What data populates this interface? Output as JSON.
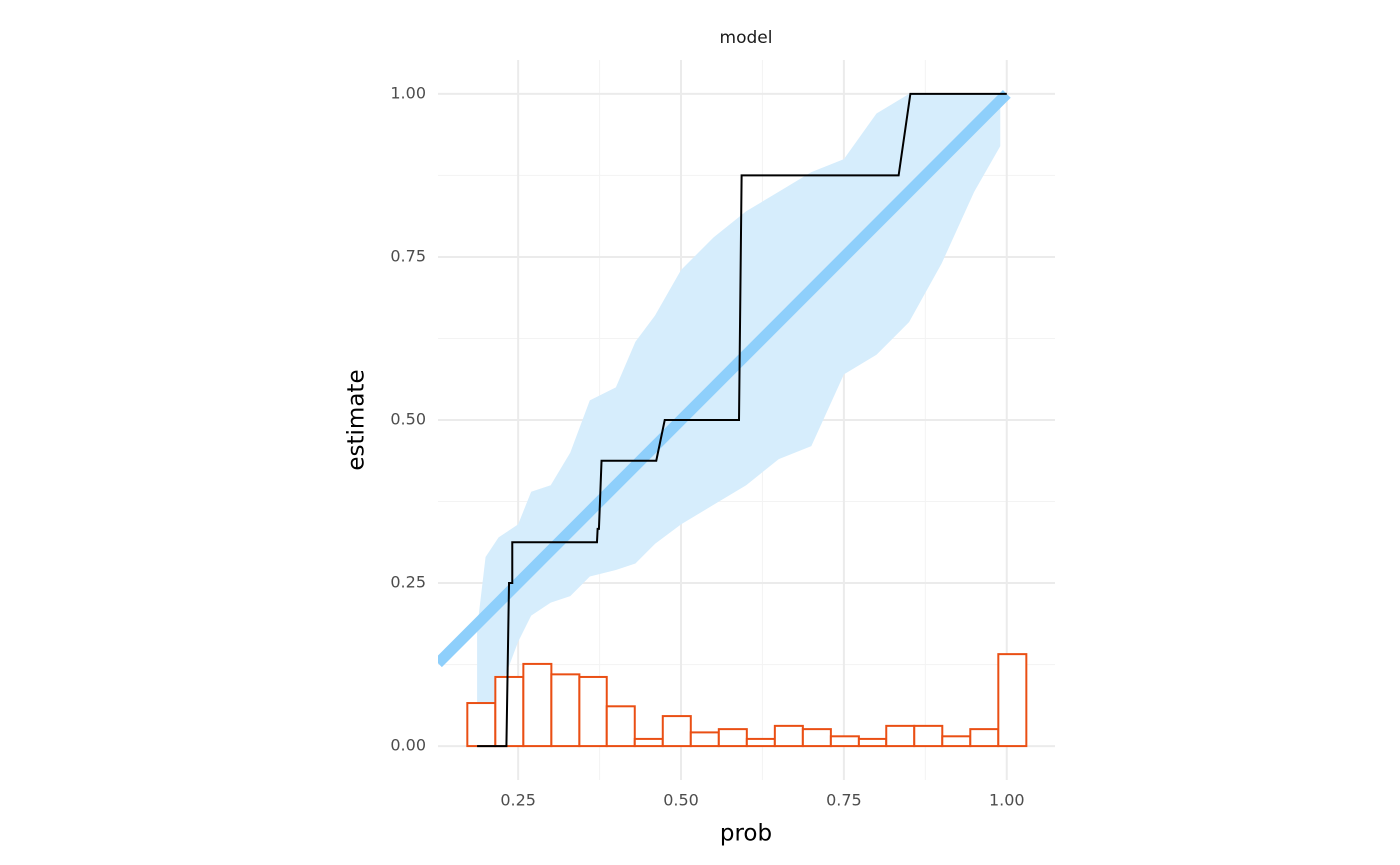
{
  "chart_data": {
    "type": "calibration",
    "facet_title": "model",
    "x_label": "prob",
    "y_label": "estimate",
    "xlim": [
      0.127,
      1.074
    ],
    "ylim": [
      -0.052,
      1.052
    ],
    "xticks": [
      {
        "value": 0.25,
        "label": "0.25"
      },
      {
        "value": 0.5,
        "label": "0.50"
      },
      {
        "value": 0.75,
        "label": "0.75"
      },
      {
        "value": 1.0,
        "label": "1.00"
      }
    ],
    "yticks": [
      {
        "value": 0,
        "label": "0.00"
      },
      {
        "value": 0.25,
        "label": "0.25"
      },
      {
        "value": 0.5,
        "label": "0.50"
      },
      {
        "value": 0.75,
        "label": "0.75"
      },
      {
        "value": 1.0,
        "label": "1.00"
      }
    ],
    "xminor": [
      0.375,
      0.625,
      0.875
    ],
    "yminor": [
      0.125,
      0.375,
      0.625,
      0.875
    ],
    "grid": true,
    "ribbon": {
      "color": "#d6edfc",
      "x": [
        0.187,
        0.2,
        0.22,
        0.25,
        0.27,
        0.3,
        0.33,
        0.36,
        0.4,
        0.43,
        0.46,
        0.5,
        0.55,
        0.6,
        0.65,
        0.7,
        0.75,
        0.8,
        0.85,
        0.9,
        0.95,
        0.99
      ],
      "lower": [
        0.0,
        0.02,
        0.08,
        0.16,
        0.2,
        0.22,
        0.23,
        0.26,
        0.27,
        0.28,
        0.31,
        0.34,
        0.37,
        0.4,
        0.44,
        0.46,
        0.57,
        0.6,
        0.65,
        0.74,
        0.85,
        0.92
      ],
      "upper": [
        0.18,
        0.29,
        0.32,
        0.34,
        0.39,
        0.4,
        0.45,
        0.53,
        0.55,
        0.62,
        0.66,
        0.73,
        0.78,
        0.82,
        0.85,
        0.88,
        0.9,
        0.97,
        1.0,
        1.0,
        1.0,
        1.0
      ]
    },
    "reference": {
      "color": "#8ecffb",
      "x": [
        0.127,
        1.0
      ],
      "y": [
        0.127,
        1.0
      ]
    },
    "histogram": {
      "color": "#ea4f14",
      "bins": [
        0.172,
        0.215,
        0.258,
        0.301,
        0.344,
        0.386,
        0.429,
        0.472,
        0.515,
        0.558,
        0.601,
        0.644,
        0.687,
        0.73,
        0.773,
        0.815,
        0.858,
        0.901,
        0.944,
        0.987,
        1.03
      ],
      "values": [
        0.066,
        0.106,
        0.126,
        0.11,
        0.106,
        0.061,
        0.011,
        0.046,
        0.021,
        0.026,
        0.011,
        0.031,
        0.026,
        0.015,
        0.011,
        0.031,
        0.031,
        0.015,
        0.026,
        0.141
      ]
    },
    "line": {
      "color": "#000000",
      "x": [
        0.187,
        0.232,
        0.236,
        0.241,
        0.241,
        0.371,
        0.372,
        0.374,
        0.378,
        0.462,
        0.475,
        0.589,
        0.593,
        0.834,
        0.852,
        1.0
      ],
      "y": [
        0,
        0,
        0.25,
        0.25,
        0.3125,
        0.3125,
        0.333,
        0.333,
        0.4375,
        0.4375,
        0.5,
        0.5,
        0.875,
        0.875,
        1.0,
        1.0
      ]
    }
  }
}
